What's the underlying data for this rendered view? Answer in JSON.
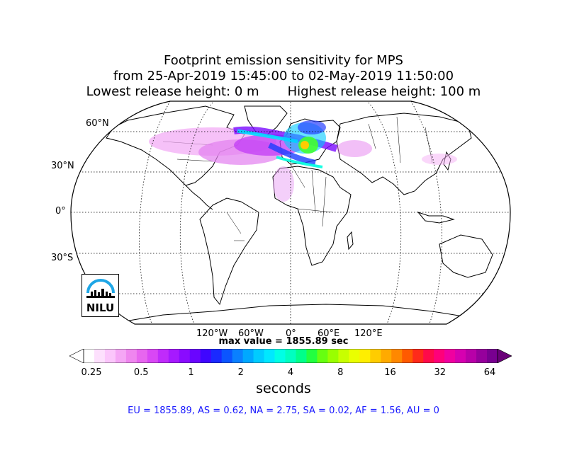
{
  "title": {
    "line1": "Footprint emission sensitivity for MPS",
    "line2": "from 25-Apr-2019 15:45:00 to 02-May-2019 11:50:00",
    "line3_left": "Lowest release height: 0 m",
    "line3_right": "Highest release height: 100 m"
  },
  "lat_labels": [
    "60°N",
    "30°N",
    "0°",
    "30°S"
  ],
  "lon_labels": [
    "120°W",
    "60°W",
    "0°",
    "60°E",
    "120°E"
  ],
  "max_value": "max value = 1855.89 sec",
  "colorbar": {
    "ticks": [
      "0.25",
      "0.5",
      "1",
      "2",
      "4",
      "8",
      "16",
      "32",
      "64"
    ],
    "units": "seconds",
    "colors": [
      "#ffffff",
      "#fde0fd",
      "#fbc6fb",
      "#f5a6f5",
      "#ef86ef",
      "#e766ef",
      "#d947f5",
      "#c02bfb",
      "#a619ff",
      "#8a0bff",
      "#6a05ff",
      "#3f06ff",
      "#1a2aff",
      "#0b55ff",
      "#0a80ff",
      "#00a8ff",
      "#00ccff",
      "#00e8ff",
      "#00ffe5",
      "#00ffc0",
      "#00ff8a",
      "#22ff40",
      "#66ff10",
      "#99ff00",
      "#c8ff00",
      "#eaff00",
      "#ffee00",
      "#ffcc00",
      "#ffaa00",
      "#ff8800",
      "#ff5a00",
      "#ff2a1a",
      "#ff0a4a",
      "#ff007a",
      "#f000a0",
      "#d600b0",
      "#b800a8",
      "#96009c",
      "#780090"
    ]
  },
  "stats": "EU = 1855.89,  AS = 0.62,  NA = 2.75,  SA = 0.02,  AF = 1.56,  AU = 0",
  "logo": {
    "text": "NILU",
    "accent_color": "#1ea6e6"
  }
}
